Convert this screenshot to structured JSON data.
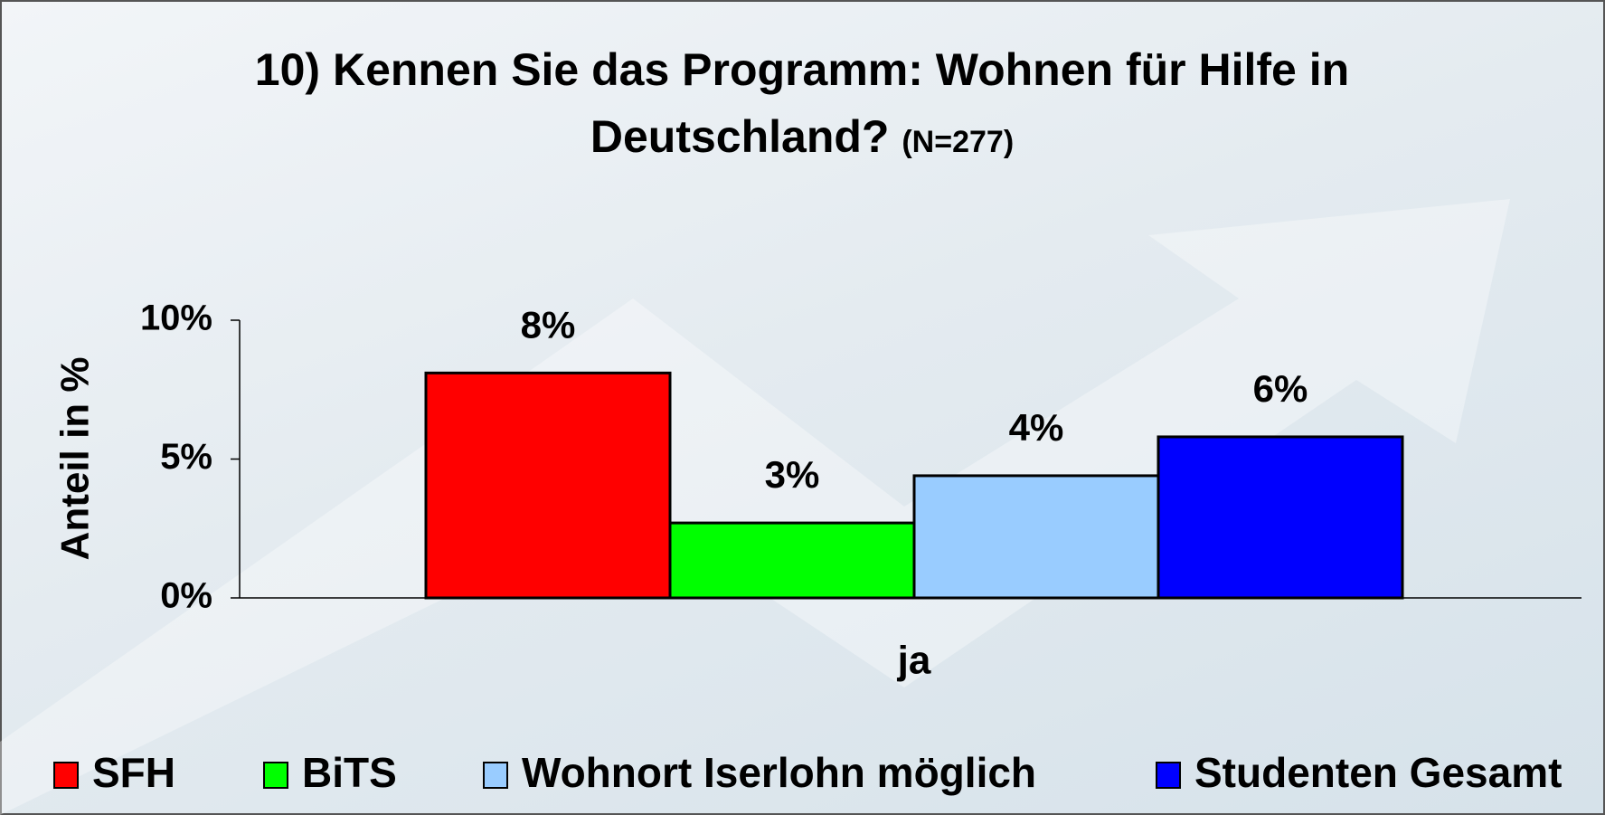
{
  "chart_data": {
    "type": "bar",
    "title": "10) Kennen Sie das Programm: Wohnen für Hilfe in Deutschland?",
    "subtitle": "(N=277)",
    "y_label": "Anteil in %",
    "categories": [
      "ja"
    ],
    "series": [
      {
        "name": "SFH",
        "color": "#ff0000",
        "values": [
          8.1
        ],
        "value_labels": [
          "8%"
        ]
      },
      {
        "name": "BiTS",
        "color": "#00ff00",
        "values": [
          2.7
        ],
        "value_labels": [
          "3%"
        ]
      },
      {
        "name": "Wohnort Iserlohn möglich",
        "color": "#99ccff",
        "values": [
          4.4
        ],
        "value_labels": [
          "4%"
        ]
      },
      {
        "name": "Studenten Gesamt",
        "color": "#0000ff",
        "values": [
          5.8
        ],
        "value_labels": [
          "6%"
        ]
      }
    ],
    "ylim": [
      0,
      10
    ],
    "yticks": [
      {
        "value": 0,
        "label": "0%"
      },
      {
        "value": 5,
        "label": "5%"
      },
      {
        "value": 10,
        "label": "10%"
      }
    ],
    "grid": false,
    "legend": "bottom"
  }
}
